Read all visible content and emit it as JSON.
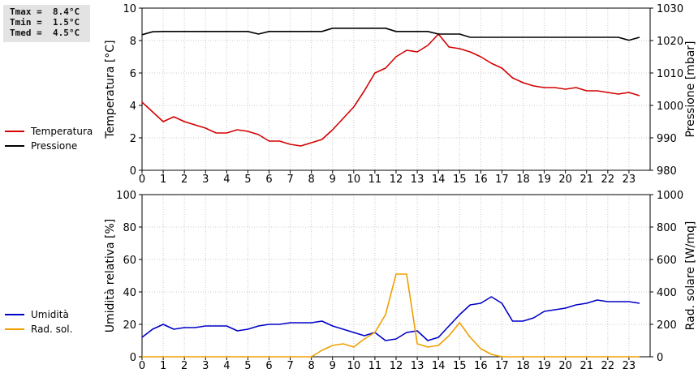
{
  "stats": {
    "tmax": "Tmax =  8.4°C",
    "tmin": "Tmin =  1.5°C",
    "tmed": "Tmed =  4.5°C"
  },
  "legend_top": [
    {
      "label": "Temperatura",
      "color": "#d40000"
    },
    {
      "label": "Pressione",
      "color": "#000000"
    }
  ],
  "legend_bottom": [
    {
      "label": "Umidità",
      "color": "#0000c8"
    },
    {
      "label": "Rad. sol.",
      "color": "#f0a000"
    }
  ],
  "chart_data": [
    {
      "type": "line",
      "ylabel": "Temperatura [°C]",
      "y2label": "Pressione [mbar]",
      "ylim": [
        0,
        10
      ],
      "y2lim": [
        980,
        1030
      ],
      "yticks": [
        0,
        2,
        4,
        6,
        8,
        10
      ],
      "y2ticks": [
        980,
        990,
        1000,
        1010,
        1020,
        1030
      ],
      "xlim": [
        0,
        24
      ],
      "xticks": [
        0,
        1,
        2,
        3,
        4,
        5,
        6,
        7,
        8,
        9,
        10,
        11,
        12,
        13,
        14,
        15,
        16,
        17,
        18,
        19,
        20,
        21,
        22,
        23
      ],
      "grid": true,
      "series": [
        {
          "name": "Temperatura",
          "axis": "left",
          "color": "#d40000",
          "x": [
            0,
            0.5,
            1,
            1.5,
            2,
            2.5,
            3,
            3.5,
            4,
            4.5,
            5,
            5.5,
            6,
            6.5,
            7,
            7.5,
            8,
            8.5,
            9,
            9.5,
            10,
            10.5,
            11,
            11.5,
            12,
            12.5,
            13,
            13.5,
            14,
            14.5,
            15,
            15.5,
            16,
            16.5,
            17,
            17.5,
            18,
            18.5,
            19,
            19.5,
            20,
            20.5,
            21,
            21.5,
            22,
            22.5,
            23,
            23.5
          ],
          "y": [
            4.2,
            3.6,
            3.0,
            3.3,
            3.0,
            2.8,
            2.6,
            2.3,
            2.3,
            2.5,
            2.4,
            2.2,
            1.8,
            1.8,
            1.6,
            1.5,
            1.7,
            1.9,
            2.5,
            3.2,
            3.9,
            4.9,
            6.0,
            6.3,
            7.0,
            7.4,
            7.3,
            7.7,
            8.4,
            7.6,
            7.5,
            7.3,
            7.0,
            6.6,
            6.3,
            5.7,
            5.4,
            5.2,
            5.1,
            5.1,
            5.0,
            5.1,
            4.9,
            4.9,
            4.8,
            4.7,
            4.8,
            4.6
          ]
        },
        {
          "name": "Pressione",
          "axis": "right",
          "color": "#000000",
          "x": [
            0,
            0.5,
            1,
            1.5,
            2,
            2.5,
            3,
            3.5,
            4,
            4.5,
            5,
            5.5,
            6,
            6.5,
            7,
            7.5,
            8,
            8.5,
            9,
            9.5,
            10,
            10.5,
            11,
            11.5,
            12,
            12.5,
            13,
            13.5,
            14,
            14.5,
            15,
            15.5,
            16,
            16.5,
            17,
            17.5,
            18,
            18.5,
            19,
            19.5,
            20,
            20.5,
            21,
            21.5,
            22,
            22.5,
            23,
            23.5
          ],
          "y": [
            1021.8,
            1022.7,
            1022.8,
            1022.8,
            1022.8,
            1022.8,
            1022.8,
            1022.8,
            1022.8,
            1022.8,
            1022.8,
            1022.0,
            1022.8,
            1022.8,
            1022.8,
            1022.8,
            1022.8,
            1022.8,
            1023.8,
            1023.8,
            1023.8,
            1023.8,
            1023.8,
            1023.8,
            1022.8,
            1022.8,
            1022.8,
            1022.8,
            1022.0,
            1022.0,
            1022.0,
            1021.0,
            1021.0,
            1021.0,
            1021.0,
            1021.0,
            1021.0,
            1021.0,
            1021.0,
            1021.0,
            1021.0,
            1021.0,
            1021.0,
            1021.0,
            1021.0,
            1021.0,
            1020.1,
            1021.0
          ]
        }
      ]
    },
    {
      "type": "line",
      "ylabel": "Umidità relativa [%]",
      "y2label": "Rad. solare [W/mq]",
      "ylim": [
        0,
        100
      ],
      "y2lim": [
        0,
        1000
      ],
      "yticks": [
        0,
        20,
        40,
        60,
        80,
        100
      ],
      "y2ticks": [
        0,
        200,
        400,
        600,
        800,
        1000
      ],
      "xlim": [
        0,
        24
      ],
      "xticks": [
        0,
        1,
        2,
        3,
        4,
        5,
        6,
        7,
        8,
        9,
        10,
        11,
        12,
        13,
        14,
        15,
        16,
        17,
        18,
        19,
        20,
        21,
        22,
        23
      ],
      "grid": true,
      "series": [
        {
          "name": "Umidità",
          "axis": "left",
          "color": "#0000c8",
          "x": [
            0,
            0.5,
            1,
            1.5,
            2,
            2.5,
            3,
            3.5,
            4,
            4.5,
            5,
            5.5,
            6,
            6.5,
            7,
            7.5,
            8,
            8.5,
            9,
            9.5,
            10,
            10.5,
            11,
            11.5,
            12,
            12.5,
            13,
            13.5,
            14,
            14.5,
            15,
            15.5,
            16,
            16.5,
            17,
            17.5,
            18,
            18.5,
            19,
            19.5,
            20,
            20.5,
            21,
            21.5,
            22,
            22.5,
            23,
            23.5
          ],
          "y": [
            12,
            17,
            20,
            17,
            18,
            18,
            19,
            19,
            19,
            16,
            17,
            19,
            20,
            20,
            21,
            21,
            21,
            22,
            19,
            17,
            15,
            13,
            15,
            10,
            11,
            15,
            16,
            10,
            12,
            19,
            26,
            32,
            33,
            37,
            33,
            22,
            22,
            24,
            28,
            29,
            30,
            32,
            33,
            35,
            34,
            34,
            34,
            33
          ]
        },
        {
          "name": "Rad. sol.",
          "axis": "right",
          "color": "#f0a000",
          "x": [
            0,
            0.5,
            1,
            1.5,
            2,
            2.5,
            3,
            3.5,
            4,
            4.5,
            5,
            5.5,
            6,
            6.5,
            7,
            7.5,
            8,
            8.5,
            9,
            9.5,
            10,
            10.5,
            11,
            11.5,
            12,
            12.5,
            13,
            13.5,
            14,
            14.5,
            15,
            15.5,
            16,
            16.5,
            17,
            17.5,
            18,
            18.5,
            19,
            19.5,
            20,
            20.5,
            21,
            21.5,
            22,
            22.5,
            23,
            23.5
          ],
          "y": [
            0,
            0,
            0,
            0,
            0,
            0,
            0,
            0,
            0,
            0,
            0,
            0,
            0,
            0,
            0,
            0,
            0,
            40,
            70,
            80,
            60,
            110,
            150,
            260,
            510,
            510,
            80,
            60,
            70,
            130,
            210,
            120,
            50,
            15,
            0,
            0,
            0,
            0,
            0,
            0,
            0,
            0,
            0,
            0,
            0,
            0,
            0,
            0
          ]
        }
      ]
    }
  ]
}
